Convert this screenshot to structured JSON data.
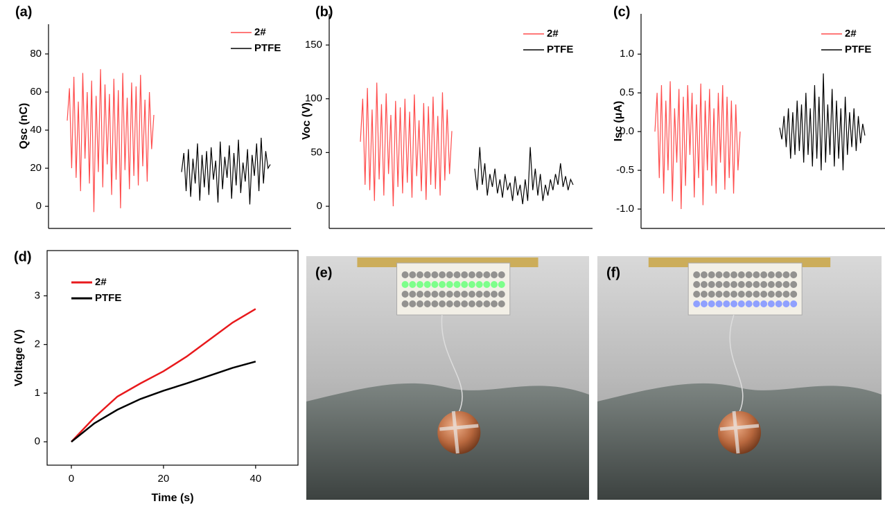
{
  "chart_data": [
    {
      "type": "line",
      "panel_label": "(a)",
      "ylabel": "Qsc (nC)",
      "ylim": [
        -11.6,
        95.6
      ],
      "yticks": [
        0,
        20,
        40,
        60,
        80
      ],
      "series": [
        {
          "name": "2#",
          "color": "#ff4c4c",
          "values": [
            45,
            62,
            20,
            68,
            15,
            55,
            8,
            70,
            25,
            60,
            12,
            66,
            -3,
            58,
            18,
            72,
            10,
            64,
            22,
            59,
            6,
            67,
            14,
            61,
            -1,
            70,
            19,
            57,
            9,
            65,
            16,
            63,
            11,
            69,
            21,
            56,
            13,
            60,
            30,
            48
          ]
        },
        {
          "name": "PTFE",
          "color": "#000000",
          "values": [
            18,
            28,
            8,
            30,
            5,
            25,
            12,
            33,
            3,
            27,
            10,
            29,
            6,
            31,
            14,
            24,
            2,
            34,
            9,
            26,
            15,
            32,
            4,
            28,
            11,
            35,
            7,
            23,
            13,
            30,
            1,
            27,
            16,
            33,
            8,
            36,
            12,
            29,
            20,
            22
          ]
        }
      ]
    },
    {
      "type": "line",
      "panel_label": "(b)",
      "ylabel": "Voc (V)",
      "ylim": [
        -20.6,
        179
      ],
      "yticks": [
        0,
        50,
        100,
        150
      ],
      "series": [
        {
          "name": "2#",
          "color": "#ff4c4c",
          "values": [
            60,
            100,
            20,
            110,
            15,
            90,
            5,
            115,
            25,
            95,
            10,
            105,
            30,
            85,
            0,
            98,
            18,
            92,
            12,
            100,
            22,
            88,
            8,
            104,
            28,
            80,
            14,
            96,
            6,
            93,
            20,
            102,
            16,
            84,
            10,
            106,
            24,
            90,
            30,
            70
          ]
        },
        {
          "name": "PTFE",
          "color": "#000000",
          "values": [
            35,
            15,
            55,
            20,
            40,
            10,
            30,
            18,
            35,
            12,
            25,
            8,
            30,
            15,
            22,
            5,
            28,
            10,
            20,
            2,
            25,
            5,
            55,
            15,
            35,
            10,
            30,
            5,
            20,
            10,
            25,
            15,
            30,
            20,
            40,
            18,
            28,
            15,
            25,
            20
          ]
        }
      ]
    },
    {
      "type": "line",
      "panel_label": "(c)",
      "ylabel": "Isc (μA)",
      "ylim": [
        -1.25,
        1.52
      ],
      "yticks": [
        {
          "value": -1,
          "label": "-1.0"
        },
        -0.5,
        {
          "value": 0,
          "label": "0.0"
        },
        0.5,
        {
          "value": 1,
          "label": "1.0"
        }
      ],
      "series": [
        {
          "name": "2#",
          "color": "#ff4c4c",
          "values": [
            0.0,
            0.5,
            -0.6,
            0.6,
            -0.8,
            0.4,
            -0.5,
            0.65,
            -0.9,
            0.3,
            -0.4,
            0.55,
            -1.0,
            0.45,
            -0.7,
            0.6,
            -0.3,
            0.5,
            -0.85,
            0.35,
            -0.6,
            0.62,
            -0.95,
            0.4,
            -0.5,
            0.55,
            -0.7,
            0.3,
            -0.8,
            0.5,
            -0.4,
            0.6,
            -0.75,
            0.45,
            -0.6,
            0.4,
            -0.8,
            0.35,
            -0.5,
            0.0
          ]
        },
        {
          "name": "PTFE",
          "color": "#000000",
          "values": [
            0.05,
            -0.1,
            0.2,
            -0.2,
            0.3,
            -0.35,
            0.25,
            -0.3,
            0.4,
            -0.25,
            0.35,
            -0.4,
            0.5,
            -0.3,
            0.3,
            -0.45,
            0.6,
            -0.35,
            0.45,
            -0.5,
            0.75,
            -0.4,
            0.35,
            -0.3,
            0.55,
            -0.45,
            0.4,
            -0.35,
            0.3,
            -0.5,
            0.45,
            -0.3,
            0.25,
            -0.2,
            0.3,
            -0.25,
            0.2,
            -0.15,
            0.1,
            -0.05
          ]
        }
      ]
    },
    {
      "type": "line",
      "panel_label": "(d)",
      "ylabel": "Voltage (V)",
      "xlabel": "Time (s)",
      "xlim": [
        -5.26,
        49.2
      ],
      "xticks": [
        0,
        20,
        40
      ],
      "ylim": [
        -0.48,
        3.93
      ],
      "yticks": [
        0,
        1,
        2,
        3
      ],
      "x": [
        0,
        5,
        10,
        15,
        20,
        25,
        30,
        35,
        40
      ],
      "series": [
        {
          "name": "2#",
          "color": "#e8191c",
          "values": [
            0,
            0.5,
            0.93,
            1.2,
            1.45,
            1.75,
            2.1,
            2.45,
            2.73
          ]
        },
        {
          "name": "PTFE",
          "color": "#000000",
          "values": [
            0,
            0.38,
            0.66,
            0.88,
            1.05,
            1.2,
            1.36,
            1.52,
            1.65
          ]
        }
      ]
    },
    {
      "type": "photo",
      "panel_label": "(e)",
      "led_color": "#7dff8a"
    },
    {
      "type": "photo",
      "panel_label": "(f)",
      "led_color": "#8fa0ff"
    }
  ]
}
